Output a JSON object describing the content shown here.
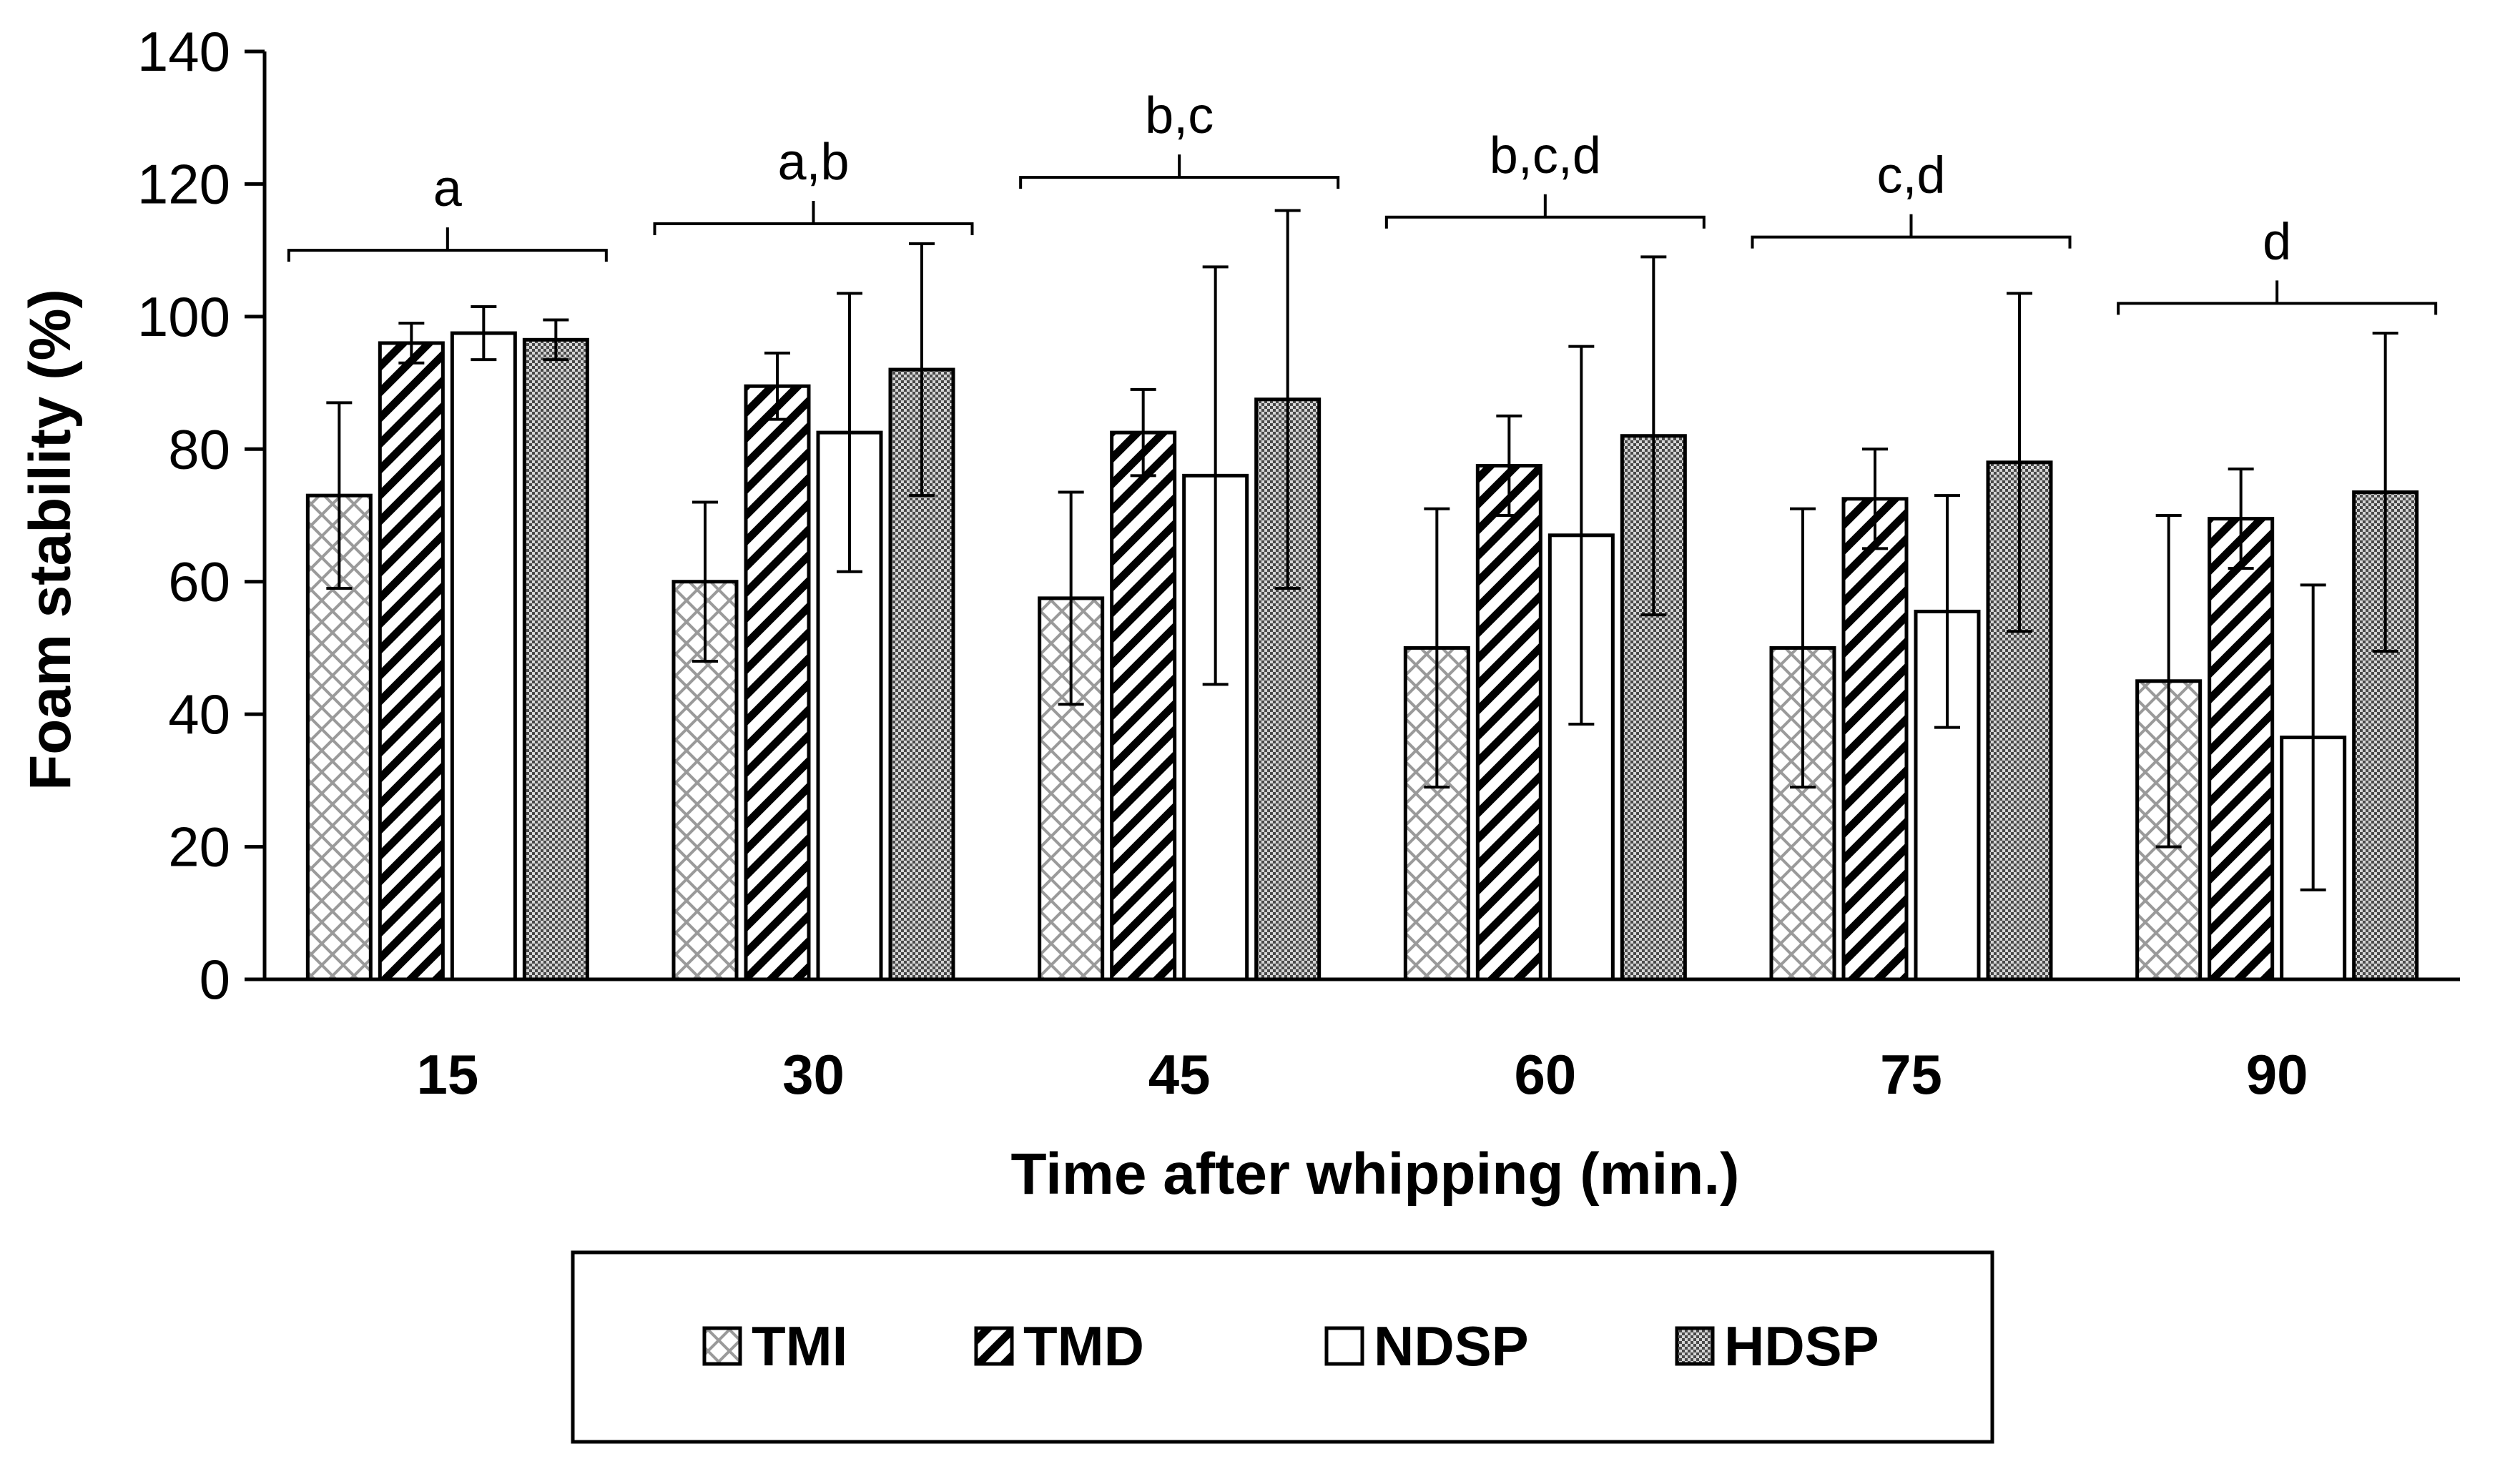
{
  "chart_data": {
    "type": "bar",
    "xlabel": "Time after whipping (min.)",
    "ylabel": "Foam stability (%)",
    "ylim": [
      0,
      140
    ],
    "yticks": [
      0,
      20,
      40,
      60,
      80,
      100,
      120,
      140
    ],
    "categories": [
      "15",
      "30",
      "45",
      "60",
      "75",
      "90"
    ],
    "series": [
      {
        "name": "TMI",
        "pattern": "crosshatch-light",
        "values": [
          73,
          60,
          57.5,
          50,
          50,
          45
        ],
        "errors": [
          14,
          12,
          16,
          21,
          21,
          25
        ]
      },
      {
        "name": "TMD",
        "pattern": "diagonal-stripes",
        "values": [
          96,
          89.5,
          82.5,
          77.5,
          72.5,
          69.5
        ],
        "errors": [
          3,
          5,
          6.5,
          7.5,
          7.5,
          7.5
        ]
      },
      {
        "name": "NDSP",
        "pattern": "solid-white",
        "values": [
          97.5,
          82.5,
          76,
          67,
          55.5,
          36.5
        ],
        "errors": [
          4,
          21,
          31.5,
          28.5,
          17.5,
          23
        ]
      },
      {
        "name": "HDSP",
        "pattern": "dense-dots-dark",
        "values": [
          96.5,
          92,
          87.5,
          82,
          78,
          73.5
        ],
        "errors": [
          3,
          19,
          28.5,
          27,
          25.5,
          24
        ]
      }
    ],
    "significance_labels": [
      "a",
      "a,b",
      "b,c",
      "b,c,d",
      "c,d",
      "d"
    ],
    "significance_bracket_y": [
      110,
      114,
      121,
      115,
      112,
      102
    ],
    "grid": false,
    "legend_position": "bottom"
  }
}
